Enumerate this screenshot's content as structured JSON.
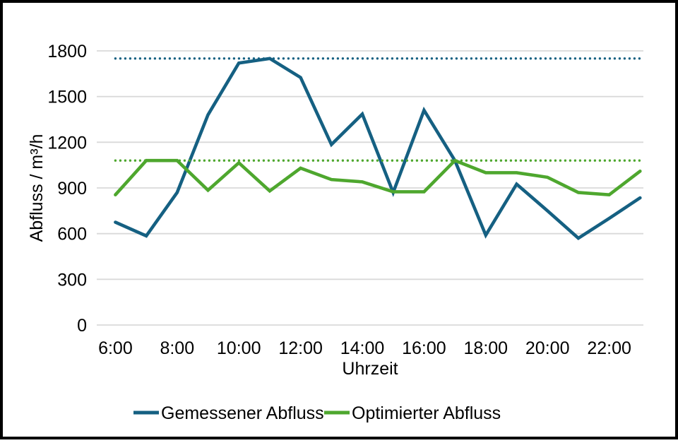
{
  "chart_data": {
    "type": "line",
    "categories": [
      "6:00",
      "7:00",
      "8:00",
      "9:00",
      "10:00",
      "11:00",
      "12:00",
      "13:00",
      "14:00",
      "15:00",
      "16:00",
      "17:00",
      "18:00",
      "19:00",
      "20:00",
      "21:00",
      "22:00",
      "23:00"
    ],
    "x_tick_every": 2,
    "x_tick_labels": [
      "6:00",
      "8:00",
      "10:00",
      "12:00",
      "14:00",
      "16:00",
      "18:00",
      "20:00",
      "22:00"
    ],
    "series": [
      {
        "name": "Gemessener Abfluss",
        "color": "#156082",
        "values": [
          675,
          585,
          870,
          1380,
          1720,
          1750,
          1625,
          1185,
          1385,
          870,
          1410,
          1080,
          590,
          925,
          750,
          570,
          700,
          835
        ]
      },
      {
        "name": "Optimierter Abfluss",
        "color": "#4EA72E",
        "values": [
          855,
          1080,
          1080,
          885,
          1065,
          880,
          1030,
          955,
          940,
          875,
          875,
          1080,
          1000,
          1000,
          970,
          870,
          855,
          1010
        ]
      }
    ],
    "reference_lines": [
      {
        "value": 1750,
        "color": "#156082",
        "style": "dotted"
      },
      {
        "value": 1080,
        "color": "#4EA72E",
        "style": "dotted"
      }
    ],
    "xlabel": "Uhrzeit",
    "ylabel": "Abfluss / m³/h",
    "ylim": [
      0,
      1800
    ],
    "yticks": [
      0,
      300,
      600,
      900,
      1200,
      1500,
      1800
    ],
    "grid": "horizontal",
    "grid_color": "#D9D9D9",
    "legend_position": "bottom",
    "background_color": "#FFFFFF",
    "border_color": "#000000"
  }
}
